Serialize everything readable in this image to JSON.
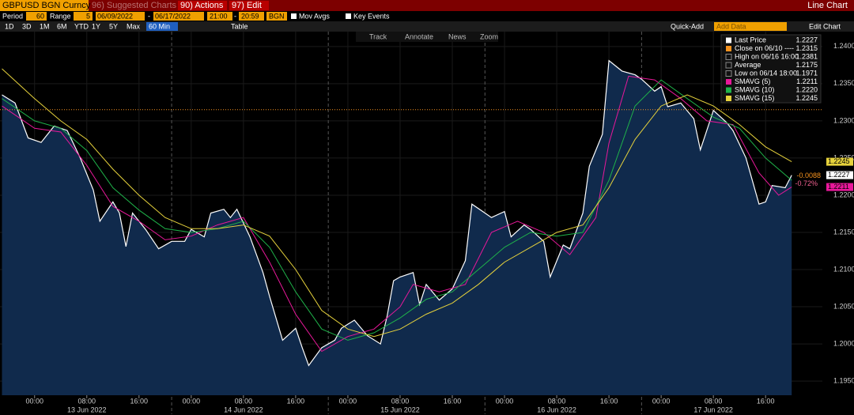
{
  "toolbar": {
    "security": "GBPUSD BGN Curncy",
    "suggested": "96) Suggested Charts",
    "actions": "90) Actions",
    "edit": "97) Edit",
    "chart_type": "Line Chart"
  },
  "controls": {
    "period_label": "Period",
    "period": 60,
    "range_label": "Range",
    "range": 5,
    "start_date": "06/09/2022",
    "dash": "-",
    "end_date": "06/17/2022",
    "start_time": "21:00",
    "end_time": "20:59",
    "source": "BGN",
    "mov_avgs": "Mov Avgs",
    "key_events": "Key Events"
  },
  "timeframes": [
    "1D",
    "3D",
    "1M",
    "6M",
    "YTD",
    "1Y",
    "5Y",
    "Max"
  ],
  "interval": "60 Min",
  "table": "Table",
  "quick_add": "Quick-Add",
  "add_data": "Add Data",
  "edit_chart": "Edit Chart",
  "tools": [
    "Track",
    "Annotate",
    "News",
    "Zoom"
  ],
  "chart_data": {
    "type": "line",
    "xlim": [
      -5.3,
      120.7
    ],
    "xticks": [
      {
        "value": 0,
        "label": "00:00"
      },
      {
        "value": 8,
        "label": "08:00"
      },
      {
        "value": 16,
        "label": "16:00"
      },
      {
        "value": 24,
        "label": "00:00"
      },
      {
        "value": 32,
        "label": "08:00"
      },
      {
        "value": 40,
        "label": "16:00"
      },
      {
        "value": 48,
        "label": "00:00"
      },
      {
        "value": 56,
        "label": "08:00"
      },
      {
        "value": 64,
        "label": "16:00"
      },
      {
        "value": 72,
        "label": "00:00"
      },
      {
        "value": 80,
        "label": "08:00"
      },
      {
        "value": 88,
        "label": "16:00"
      },
      {
        "value": 96,
        "label": "00:00"
      },
      {
        "value": 104,
        "label": "08:00"
      },
      {
        "value": 112,
        "label": "16:00"
      }
    ],
    "day_labels": [
      {
        "value": 8,
        "label": "13 Jun 2022"
      },
      {
        "value": 32,
        "label": "14 Jun 2022"
      },
      {
        "value": 56,
        "label": "15 Jun 2022"
      },
      {
        "value": 80,
        "label": "16 Jun 2022"
      },
      {
        "value": 104,
        "label": "17 Jun 2022"
      }
    ],
    "session_breaks": [
      21,
      45,
      69,
      93
    ],
    "ylim": [
      1.1931,
      1.242
    ],
    "yticks": [
      {
        "value": 1.195,
        "label": "1.1950"
      },
      {
        "value": 1.2,
        "label": "1.2000"
      },
      {
        "value": 1.205,
        "label": "1.2050"
      },
      {
        "value": 1.21,
        "label": "1.2100"
      },
      {
        "value": 1.215,
        "label": "1.2150"
      },
      {
        "value": 1.22,
        "label": "1.2200"
      },
      {
        "value": 1.225,
        "label": "1.2250"
      },
      {
        "value": 1.23,
        "label": "1.2300"
      },
      {
        "value": 1.235,
        "label": "1.2350"
      },
      {
        "value": 1.24,
        "label": "1.2400"
      }
    ],
    "series": [
      {
        "name": "Last Price",
        "color": "#ffffff",
        "fill": "#102a4c",
        "legend_value": "1.2227",
        "x": [
          -5,
          -3,
          -1,
          1,
          2,
          3,
          5,
          7,
          9,
          10,
          12,
          13,
          14,
          15,
          17,
          19,
          21,
          23,
          24,
          26,
          27,
          29,
          30,
          31,
          33,
          35,
          36,
          38,
          40,
          41,
          42,
          44,
          46,
          47,
          49,
          51,
          53,
          54,
          55,
          56,
          58,
          59,
          60,
          62,
          64,
          66,
          67,
          69,
          70,
          72,
          73,
          75,
          76,
          78,
          79,
          81,
          82,
          84,
          85,
          87,
          88,
          90,
          92,
          93,
          95,
          96,
          97,
          99,
          101,
          102,
          104,
          106,
          107,
          109,
          111,
          112,
          113,
          115,
          116
        ],
        "values": [
          1.2335,
          1.2324,
          1.2277,
          1.2271,
          1.2282,
          1.2293,
          1.2287,
          1.225,
          1.2207,
          1.2165,
          1.2191,
          1.2176,
          1.2131,
          1.2176,
          1.2154,
          1.2128,
          1.2138,
          1.2138,
          1.2154,
          1.2144,
          1.2176,
          1.2181,
          1.217,
          1.2181,
          1.2144,
          1.2096,
          1.2064,
          1.2005,
          1.2021,
          1.1995,
          1.1971,
          1.1995,
          1.2005,
          1.2021,
          1.2032,
          1.2011,
          1.2,
          1.2037,
          1.2085,
          1.209,
          1.2096,
          1.2053,
          1.208,
          1.2059,
          1.2074,
          1.2112,
          1.2188,
          1.2176,
          1.217,
          1.2178,
          1.2144,
          1.216,
          1.2154,
          1.2138,
          1.209,
          1.2133,
          1.2128,
          1.2176,
          1.2239,
          1.2282,
          1.2381,
          1.2367,
          1.2362,
          1.2356,
          1.234,
          1.2346,
          1.2319,
          1.2324,
          1.2303,
          1.2261,
          1.2314,
          1.2298,
          1.2287,
          1.225,
          1.2188,
          1.2191,
          1.2213,
          1.221,
          1.2227
        ]
      },
      {
        "name": "SMAVG (5)",
        "color": "#e8189a",
        "legend_value": "1.2211",
        "x": [
          -5,
          0,
          4,
          8,
          12,
          16,
          20,
          24,
          28,
          32,
          36,
          40,
          44,
          48,
          52,
          56,
          58,
          62,
          66,
          70,
          74,
          78,
          82,
          86,
          88,
          91,
          95,
          99,
          103,
          107,
          111,
          114,
          116
        ],
        "values": [
          1.232,
          1.229,
          1.2285,
          1.224,
          1.2185,
          1.2165,
          1.214,
          1.2145,
          1.216,
          1.217,
          1.211,
          1.204,
          1.199,
          1.201,
          1.202,
          1.205,
          1.208,
          1.207,
          1.208,
          1.215,
          1.2165,
          1.215,
          1.212,
          1.217,
          1.227,
          1.236,
          1.2355,
          1.233,
          1.23,
          1.2295,
          1.223,
          1.22,
          1.2211
        ]
      },
      {
        "name": "SMAVG (10)",
        "color": "#1fb34a",
        "legend_value": "1.2220",
        "x": [
          -5,
          0,
          4,
          8,
          12,
          16,
          20,
          24,
          28,
          32,
          36,
          40,
          44,
          48,
          52,
          56,
          60,
          64,
          68,
          72,
          76,
          80,
          84,
          88,
          92,
          96,
          100,
          104,
          108,
          112,
          116
        ],
        "values": [
          1.233,
          1.23,
          1.229,
          1.226,
          1.221,
          1.218,
          1.2155,
          1.215,
          1.2155,
          1.2165,
          1.213,
          1.207,
          1.202,
          1.2005,
          1.2015,
          1.2035,
          1.206,
          1.207,
          1.21,
          1.213,
          1.215,
          1.2145,
          1.215,
          1.222,
          1.232,
          1.2355,
          1.233,
          1.2305,
          1.229,
          1.225,
          1.222
        ]
      },
      {
        "name": "SMAVG (15)",
        "color": "#e6d23c",
        "legend_value": "1.2245",
        "x": [
          -5,
          0,
          4,
          8,
          12,
          16,
          20,
          24,
          28,
          32,
          36,
          40,
          44,
          48,
          52,
          56,
          60,
          64,
          68,
          72,
          76,
          80,
          84,
          88,
          92,
          96,
          100,
          104,
          108,
          112,
          116
        ],
        "values": [
          1.237,
          1.233,
          1.23,
          1.2275,
          1.2235,
          1.22,
          1.217,
          1.2155,
          1.2155,
          1.216,
          1.2145,
          1.21,
          1.2045,
          1.202,
          1.201,
          1.202,
          1.204,
          1.2055,
          1.208,
          1.211,
          1.213,
          1.215,
          1.216,
          1.221,
          1.2275,
          1.232,
          1.2335,
          1.232,
          1.2295,
          1.2265,
          1.2245
        ]
      }
    ],
    "stats": [
      {
        "label": "Close on 06/10 ----",
        "value": 1.2315,
        "color": "#f7931e"
      },
      {
        "label": "High on 06/16 16:00",
        "value": 1.2381,
        "color": "#ffffff"
      },
      {
        "label": "Average",
        "value": 1.2175,
        "color": "#ffffff"
      },
      {
        "label": "Low on 06/14 18:00",
        "value": 1.1971,
        "color": "#ffffff"
      }
    ],
    "change": {
      "value": -0.0088,
      "percent": "-0.72%"
    }
  }
}
